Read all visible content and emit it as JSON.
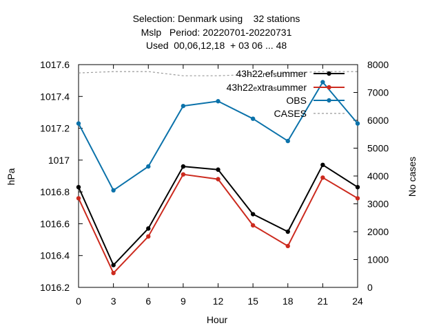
{
  "chart_data": {
    "type": "line",
    "title_lines": [
      "Selection: Denmark using    32 stations",
      "Mslp   Period: 20220701-20220731",
      "Used  00,06,12,18  + 03 06 ... 48"
    ],
    "xlabel": "Hour",
    "ylabel": "hPa",
    "y2label": "No cases",
    "x": [
      0,
      3,
      6,
      9,
      12,
      15,
      18,
      21,
      24
    ],
    "xlim": [
      0,
      24
    ],
    "ylim": [
      1016.2,
      1017.6
    ],
    "y2lim": [
      0,
      8000
    ],
    "xticks": [
      "0",
      "3",
      "6",
      "9",
      "12",
      "15",
      "18",
      "21",
      "24"
    ],
    "yticks": [
      "1016.2",
      "1016.4",
      "1016.6",
      "1016.8",
      "1017",
      "1017.2",
      "1017.4",
      "1017.6"
    ],
    "y2ticks": [
      "0",
      "1000",
      "2000",
      "3000",
      "4000",
      "5000",
      "6000",
      "7000",
      "8000"
    ],
    "grid": false,
    "legend_position": "top-right",
    "series": [
      {
        "legend_parts": [
          {
            "text": "43h22",
            "sub": false
          },
          {
            "text": "r",
            "sub": true
          },
          {
            "text": "ef",
            "sub": false
          },
          {
            "text": "s",
            "sub": true
          },
          {
            "text": "ummer",
            "sub": false
          }
        ],
        "color": "#000000",
        "axis": "y1",
        "values": [
          1016.83,
          1016.34,
          1016.57,
          1016.96,
          1016.94,
          1016.66,
          1016.55,
          1016.97,
          1016.83
        ]
      },
      {
        "legend_parts": [
          {
            "text": "43h22",
            "sub": false
          },
          {
            "text": "e",
            "sub": true
          },
          {
            "text": "xtra",
            "sub": false
          },
          {
            "text": "s",
            "sub": true
          },
          {
            "text": "ummer",
            "sub": false
          }
        ],
        "color": "#cc2a1e",
        "axis": "y1",
        "values": [
          1016.76,
          1016.29,
          1016.52,
          1016.91,
          1016.88,
          1016.59,
          1016.46,
          1016.89,
          1016.76
        ]
      },
      {
        "name": "OBS",
        "color": "#0b72aa",
        "axis": "y1",
        "values": [
          1017.23,
          1016.81,
          1016.96,
          1017.34,
          1017.37,
          1017.26,
          1017.12,
          1017.49,
          1017.23
        ]
      },
      {
        "name": "CASES",
        "color": "#999999",
        "dashed": true,
        "axis": "y2",
        "values": [
          7700,
          7750,
          7750,
          7600,
          7600,
          7650,
          7700,
          7750,
          7750
        ]
      }
    ]
  }
}
